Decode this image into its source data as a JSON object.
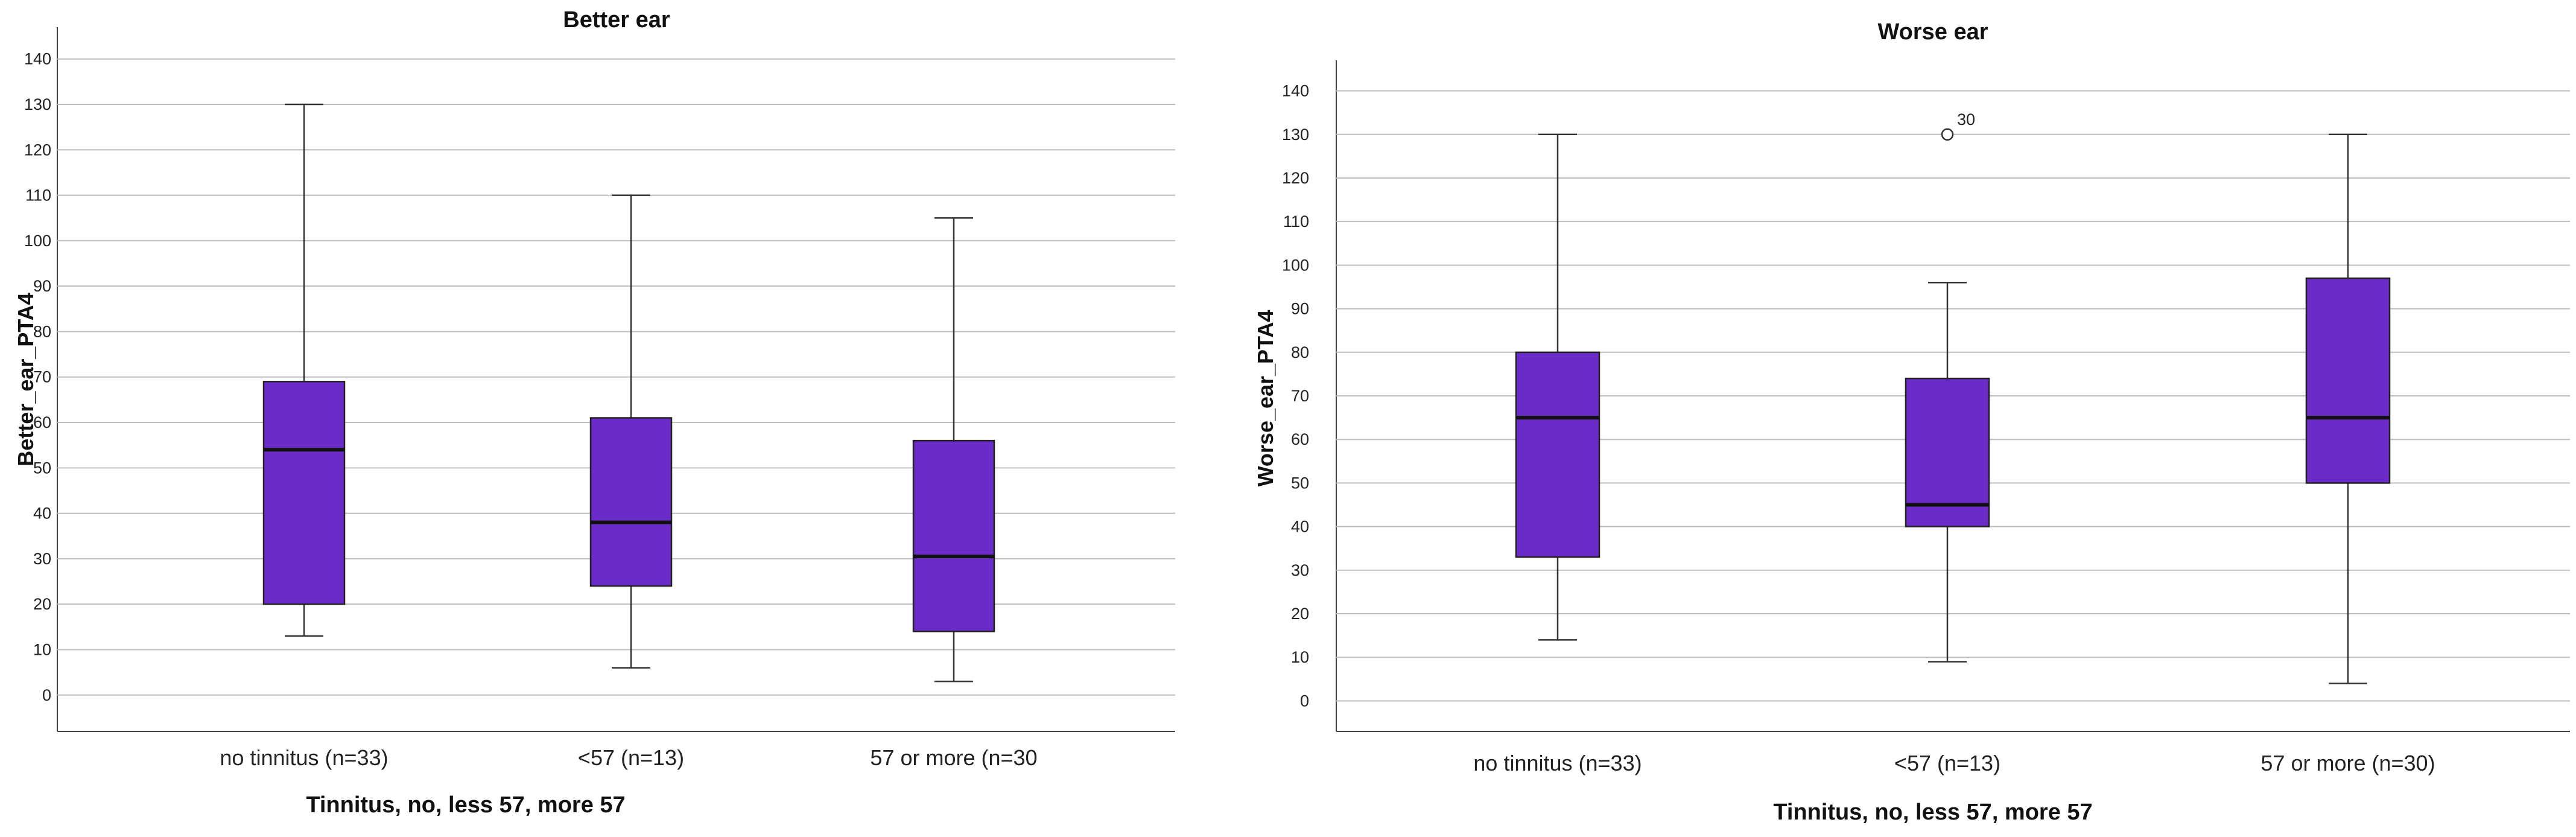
{
  "chart_data": [
    {
      "type": "boxplot",
      "title": "Better ear",
      "xlabel": "Tinnitus, no, less 57, more 57",
      "ylabel": "Better_ear_PTA4",
      "ylim": [
        -8,
        147
      ],
      "yticks": [
        0,
        10,
        20,
        30,
        40,
        50,
        60,
        70,
        80,
        90,
        100,
        110,
        120,
        130,
        140
      ],
      "grid": true,
      "box_color": "#6a2bc9",
      "categories": [
        "no tinnitus (n=33)",
        "<57 (n=13)",
        "57 or more (n=30"
      ],
      "boxes": [
        {
          "min": 13,
          "q1": 20,
          "median": 54,
          "q3": 69,
          "max": 130
        },
        {
          "min": 6,
          "q1": 24,
          "median": 38,
          "q3": 61,
          "max": 110
        },
        {
          "min": 3,
          "q1": 14,
          "median": 30.5,
          "q3": 56,
          "max": 105
        }
      ],
      "outliers": []
    },
    {
      "type": "boxplot",
      "title": "Worse ear",
      "xlabel": "Tinnitus, no, less 57, more 57",
      "ylabel": "Worse_ear_PTA4",
      "ylim": [
        -7,
        147
      ],
      "yticks": [
        0,
        10,
        20,
        30,
        40,
        50,
        60,
        70,
        80,
        90,
        100,
        110,
        120,
        130,
        140
      ],
      "grid": true,
      "box_color": "#6a2bc9",
      "categories": [
        "no tinnitus (n=33)",
        "<57 (n=13)",
        "57 or more (n=30)"
      ],
      "boxes": [
        {
          "min": 14,
          "q1": 33,
          "median": 65,
          "q3": 80,
          "max": 130
        },
        {
          "min": 9,
          "q1": 40,
          "median": 45,
          "q3": 74,
          "max": 96
        },
        {
          "min": 4,
          "q1": 50,
          "median": 65,
          "q3": 97,
          "max": 130
        }
      ],
      "outliers": [
        {
          "category_index": 1,
          "value": 130,
          "label": "30"
        }
      ]
    }
  ]
}
